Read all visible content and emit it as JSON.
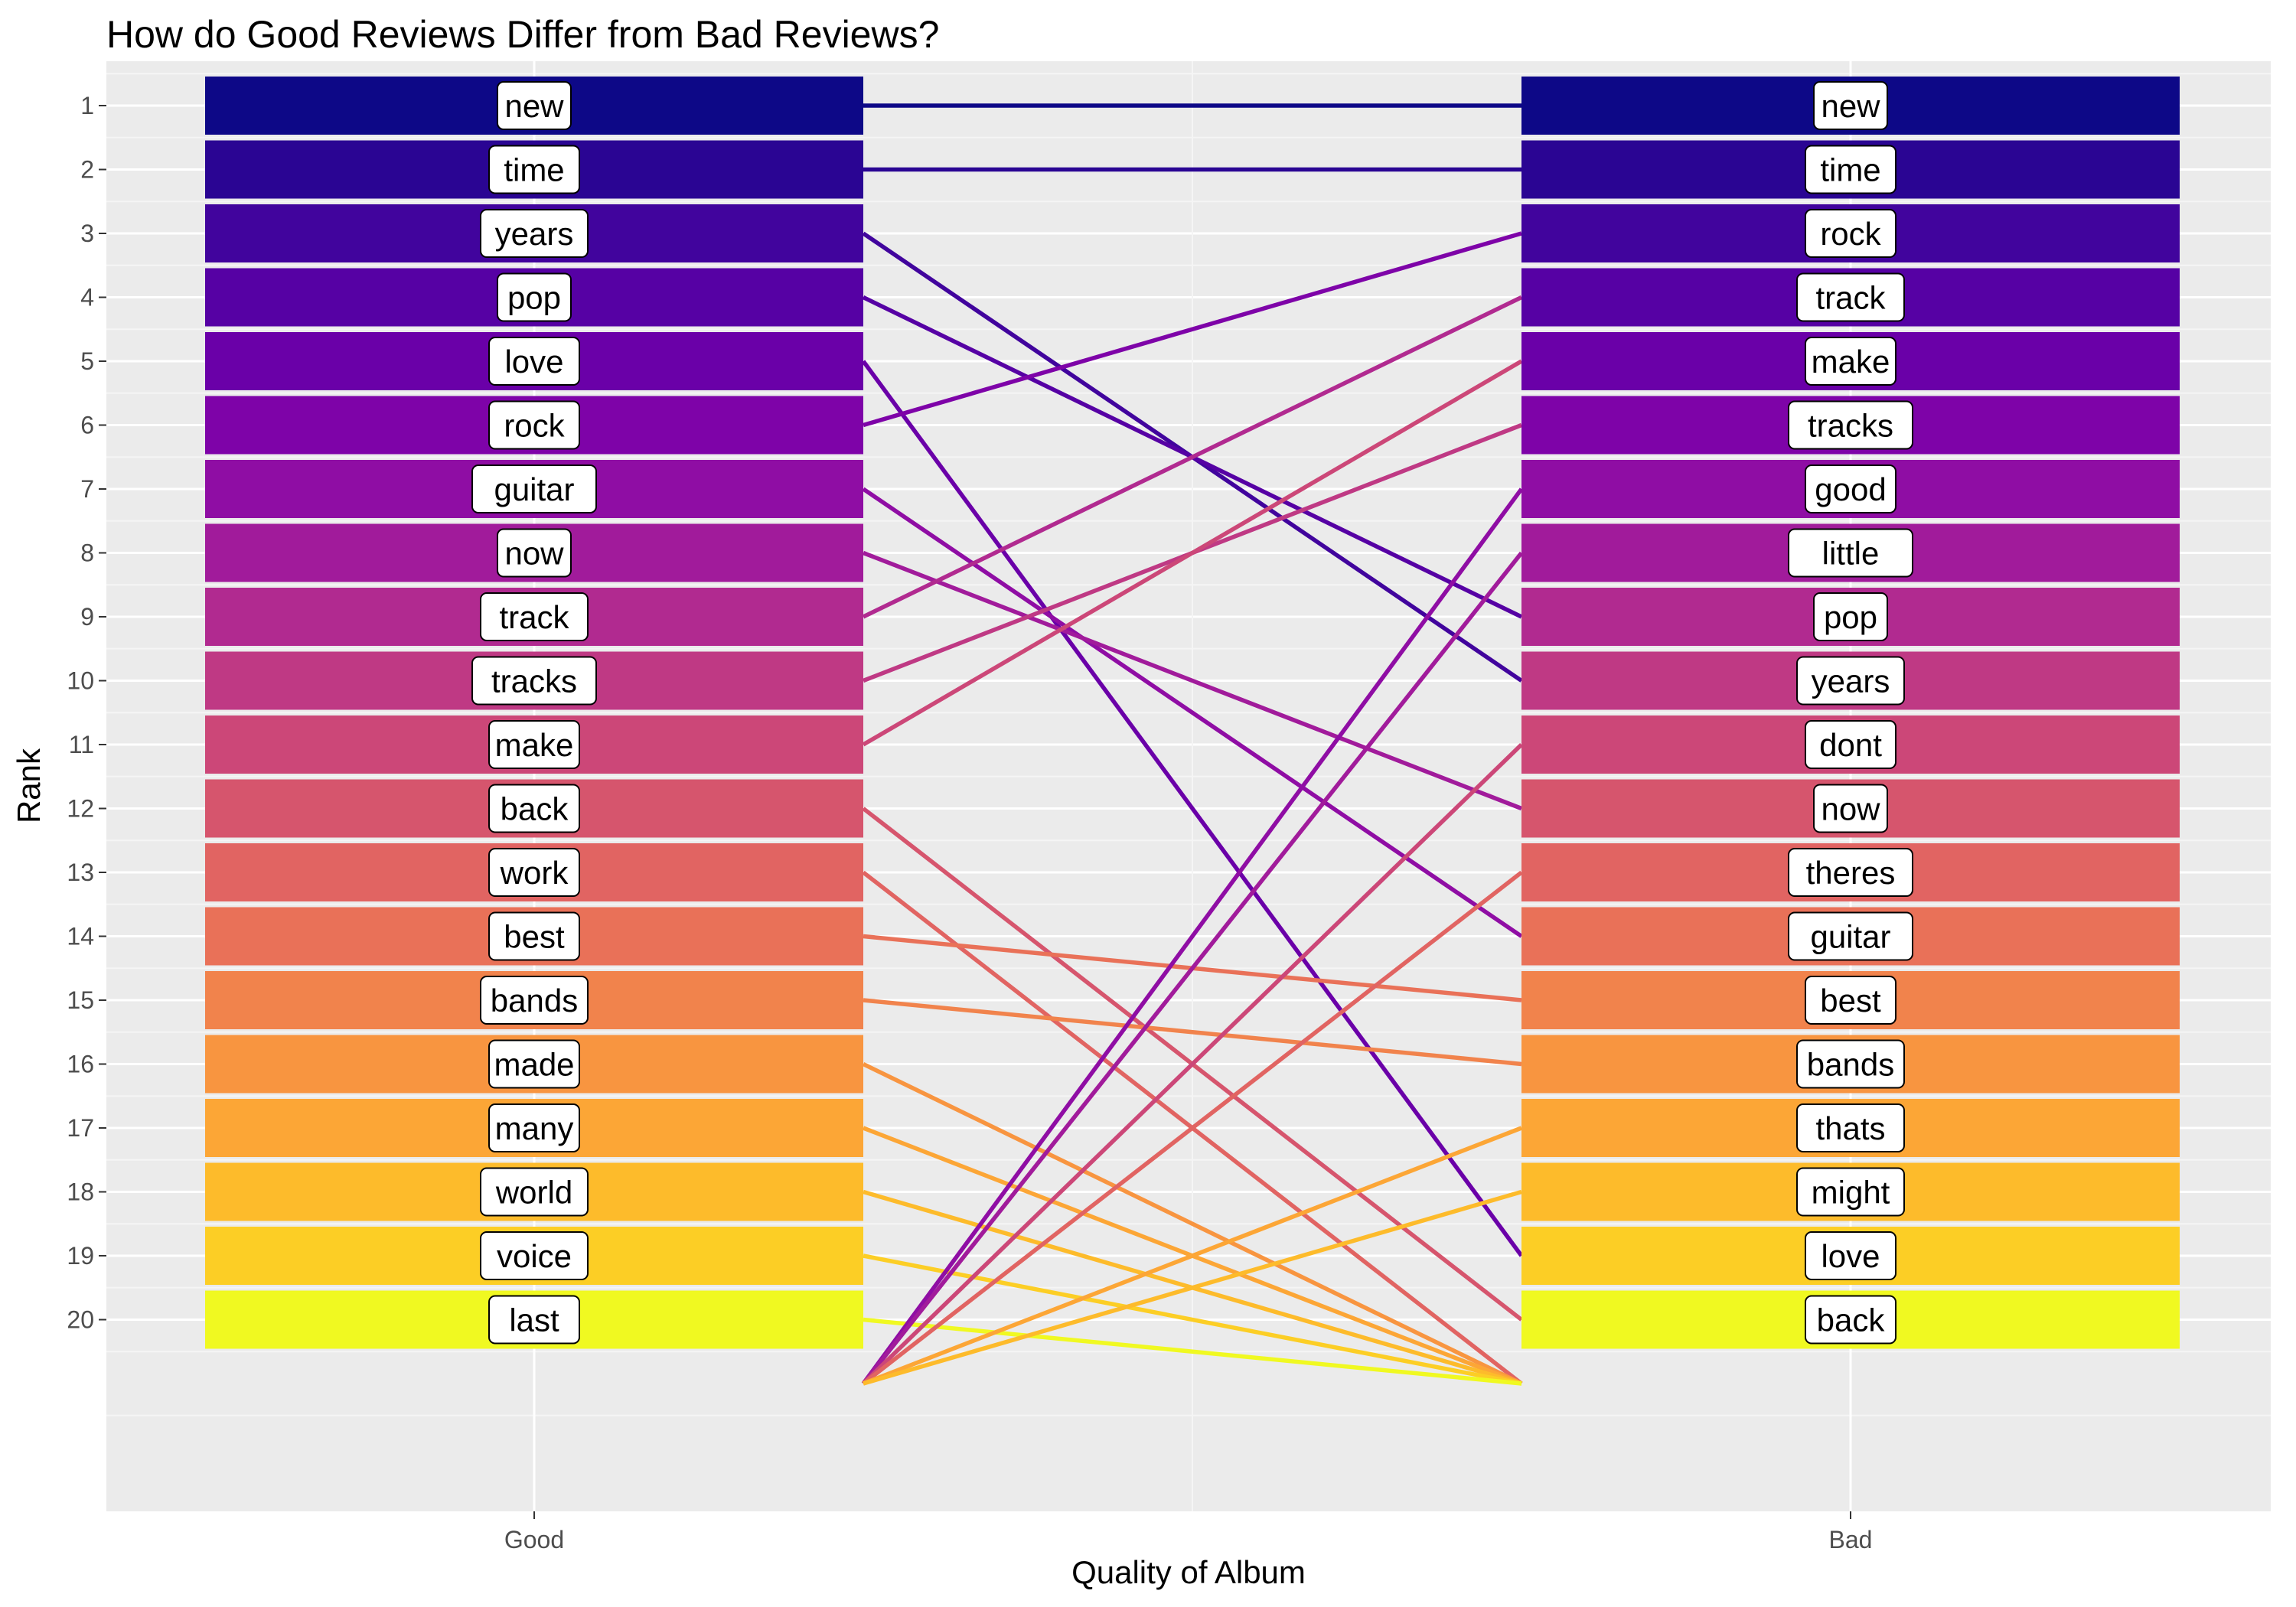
{
  "chart_data": {
    "type": "bump",
    "title": "How do Good Reviews Differ from Bad Reviews?",
    "xlabel": "Quality of Album",
    "ylabel": "Rank",
    "categories": [
      "Good",
      "Bad"
    ],
    "ranks": [
      1,
      2,
      3,
      4,
      5,
      6,
      7,
      8,
      9,
      10,
      11,
      12,
      13,
      14,
      15,
      16,
      17,
      18,
      19,
      20
    ],
    "ylim": [
      0,
      22
    ],
    "grid": true,
    "rank_colors": [
      "#0d0887",
      "#2a0593",
      "#41049d",
      "#5601a4",
      "#6a00a8",
      "#7e03a8",
      "#8f0da4",
      "#a11b9b",
      "#b12a90",
      "#bf3984",
      "#cc4778",
      "#d6556d",
      "#e16462",
      "#e97158",
      "#f1834c",
      "#f89540",
      "#fca636",
      "#fdbb2b",
      "#fcce25",
      "#f0f921"
    ],
    "good": [
      "new",
      "time",
      "years",
      "pop",
      "love",
      "rock",
      "guitar",
      "now",
      "track",
      "tracks",
      "make",
      "back",
      "work",
      "best",
      "bands",
      "made",
      "many",
      "world",
      "voice",
      "last"
    ],
    "bad": [
      "new",
      "time",
      "rock",
      "track",
      "make",
      "tracks",
      "good",
      "little",
      "pop",
      "years",
      "dont",
      "now",
      "theres",
      "guitar",
      "best",
      "bands",
      "thats",
      "might",
      "love",
      "back"
    ]
  }
}
